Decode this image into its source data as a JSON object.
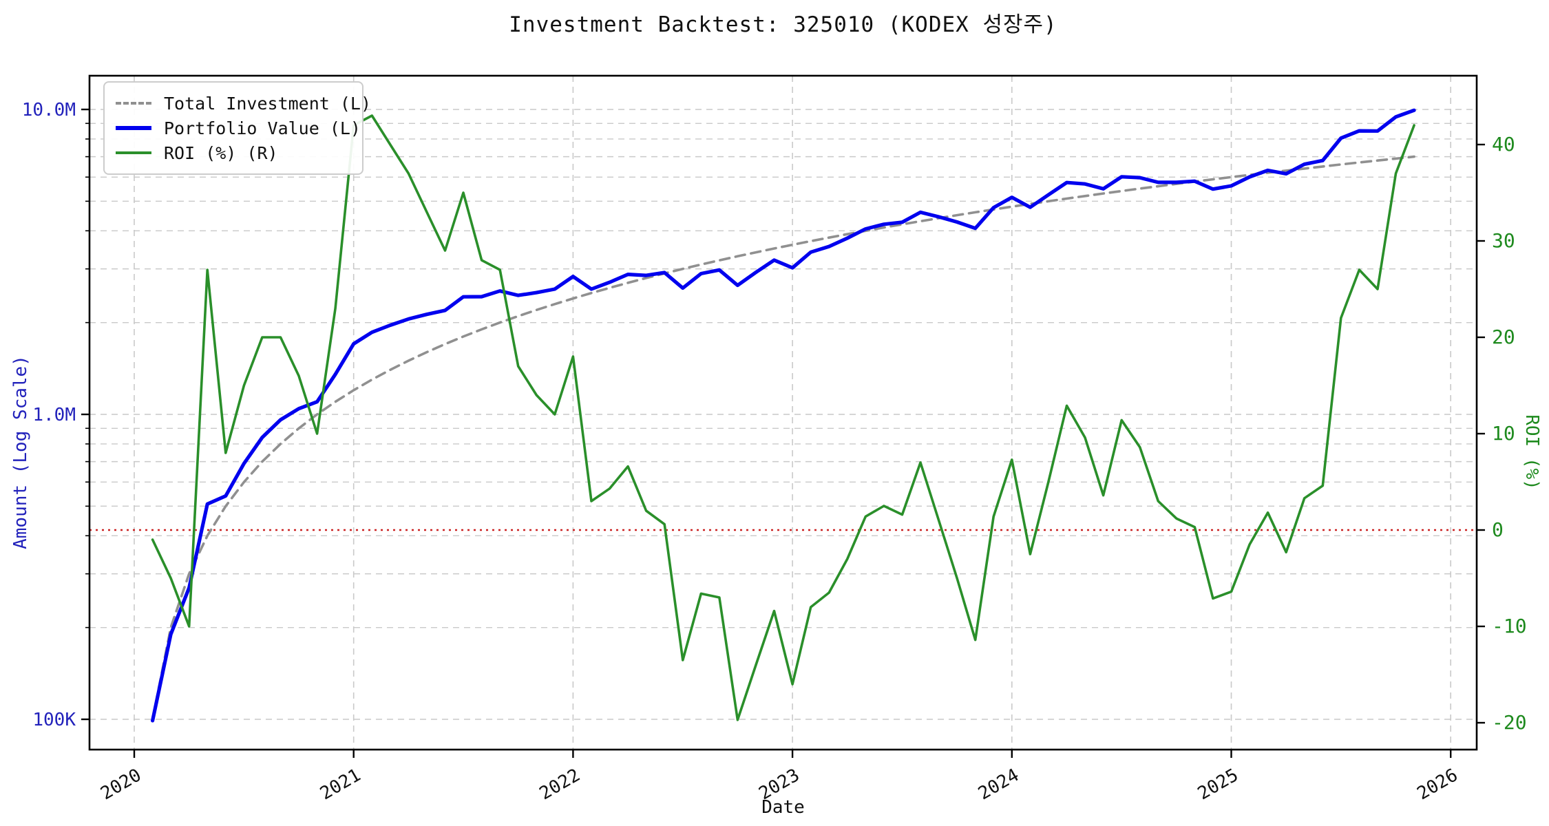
{
  "title": "Investment Backtest: 325010 (KODEX 성장주)",
  "axes": {
    "x": {
      "label": "Date",
      "ticks": [
        "2020",
        "2021",
        "2022",
        "2023",
        "2024",
        "2025",
        "2026"
      ]
    },
    "y_left": {
      "label": "Amount (Log Scale)",
      "ticks": [
        "100K",
        "1.0M",
        "10.0M"
      ],
      "color": "#2222bb"
    },
    "y_right": {
      "label": "ROI (%)",
      "ticks": [
        "-20",
        "-10",
        "0",
        "10",
        "20",
        "30",
        "40"
      ],
      "color": "#1e8a1e"
    }
  },
  "legend": [
    {
      "label": "Total Investment (L)",
      "color": "#909090",
      "style": "dashed"
    },
    {
      "label": "Portfolio Value (L)",
      "color": "#0000ee",
      "style": "solid"
    },
    {
      "label": "ROI (%) (R)",
      "color": "#2a8f2a",
      "style": "solid"
    }
  ],
  "colors": {
    "total_investment": "#909090",
    "portfolio": "#0000ee",
    "roi": "#2a8f2a",
    "zero_line": "#cc2222",
    "grid": "#c9c9c9",
    "spine": "#000000"
  },
  "chart_data": {
    "type": "line",
    "title": "Investment Backtest: 325010 (KODEX 성장주)",
    "xlabel": "Date",
    "ylabel_left": "Amount (Log Scale)",
    "ylabel_right": "ROI (%)",
    "x_range_years": [
      2020,
      2026
    ],
    "y_left_log_range": [
      100000,
      10000000
    ],
    "y_right_range": [
      -20,
      45
    ],
    "zero_roi_reference_line": 0,
    "months": [
      "2020-02",
      "2020-03",
      "2020-04",
      "2020-05",
      "2020-06",
      "2020-07",
      "2020-08",
      "2020-09",
      "2020-10",
      "2020-11",
      "2020-12",
      "2021-01",
      "2021-02",
      "2021-03",
      "2021-04",
      "2021-05",
      "2021-06",
      "2021-07",
      "2021-08",
      "2021-09",
      "2021-10",
      "2021-11",
      "2021-12",
      "2022-01",
      "2022-02",
      "2022-03",
      "2022-04",
      "2022-05",
      "2022-06",
      "2022-07",
      "2022-08",
      "2022-09",
      "2022-10",
      "2022-11",
      "2022-12",
      "2023-01",
      "2023-02",
      "2023-03",
      "2023-04",
      "2023-05",
      "2023-06",
      "2023-07",
      "2023-08",
      "2023-09",
      "2023-10",
      "2023-11",
      "2023-12",
      "2024-01",
      "2024-02",
      "2024-03",
      "2024-04",
      "2024-05",
      "2024-06",
      "2024-07",
      "2024-08",
      "2024-09",
      "2024-10",
      "2024-11",
      "2024-12",
      "2025-01",
      "2025-02",
      "2025-03",
      "2025-04",
      "2025-05",
      "2025-06",
      "2025-07",
      "2025-08",
      "2025-09",
      "2025-10",
      "2025-11"
    ],
    "series": [
      {
        "name": "Total Investment (L)",
        "axis": "left",
        "values": [
          100000,
          200000,
          300000,
          400000,
          500000,
          600000,
          700000,
          800000,
          900000,
          1000000,
          1100000,
          1200000,
          1300000,
          1400000,
          1500000,
          1600000,
          1700000,
          1800000,
          1900000,
          2000000,
          2100000,
          2200000,
          2300000,
          2400000,
          2500000,
          2600000,
          2700000,
          2800000,
          2900000,
          3000000,
          3100000,
          3200000,
          3300000,
          3400000,
          3500000,
          3600000,
          3700000,
          3800000,
          3900000,
          4000000,
          4100000,
          4200000,
          4300000,
          4400000,
          4500000,
          4600000,
          4700000,
          4800000,
          4900000,
          5000000,
          5100000,
          5200000,
          5300000,
          5400000,
          5500000,
          5600000,
          5700000,
          5800000,
          5900000,
          6000000,
          6100000,
          6200000,
          6300000,
          6400000,
          6500000,
          6600000,
          6700000,
          6800000,
          6900000,
          7000000
        ]
      },
      {
        "name": "Portfolio Value (L)",
        "axis": "left",
        "values": [
          99000,
          190000,
          270000,
          508000,
          540000,
          690000,
          840000,
          960000,
          1044000,
          1100000,
          1353000,
          1704000,
          1859000,
          1960000,
          2055000,
          2128000,
          2193000,
          2430000,
          2432000,
          2540000,
          2457000,
          2508000,
          2576000,
          2832000,
          2575000,
          2711800,
          2878200,
          2856000,
          2917400,
          2595000,
          2895400,
          2976000,
          2649900,
          2924000,
          3206000,
          3024000,
          3404000,
          3553000,
          3783000,
          4056000,
          4202500,
          4267200,
          4601000,
          4444000,
          4275000,
          4075600,
          4765800,
          5150400,
          4777500,
          5250000,
          5757900,
          5699200,
          5490800,
          6015600,
          5973000,
          5768000,
          5768400,
          5817400,
          5481100,
          5616000,
          6008500,
          6311600,
          6155100,
          6611200,
          6799000,
          8052000,
          8509000,
          8500000,
          9453000,
          9940000
        ]
      },
      {
        "name": "ROI (%) (R)",
        "axis": "right",
        "values": [
          -1,
          -5,
          -10,
          27,
          8,
          15,
          20,
          20,
          16,
          10,
          23,
          42,
          43,
          40,
          37,
          33,
          29,
          35,
          28,
          27,
          17,
          14,
          12,
          18,
          3,
          4.3,
          6.6,
          2,
          0.6,
          -13.5,
          -6.6,
          -7,
          -19.7,
          -14,
          -8.4,
          -16,
          -8,
          -6.5,
          -3,
          1.4,
          2.5,
          1.6,
          7,
          1,
          -5,
          -11.4,
          1.4,
          7.3,
          -2.5,
          5,
          12.9,
          9.6,
          3.6,
          11.4,
          8.6,
          3,
          1.2,
          0.3,
          -7.1,
          -6.4,
          -1.5,
          1.8,
          -2.3,
          3.3,
          4.6,
          22,
          27,
          25,
          37,
          42
        ]
      }
    ]
  }
}
